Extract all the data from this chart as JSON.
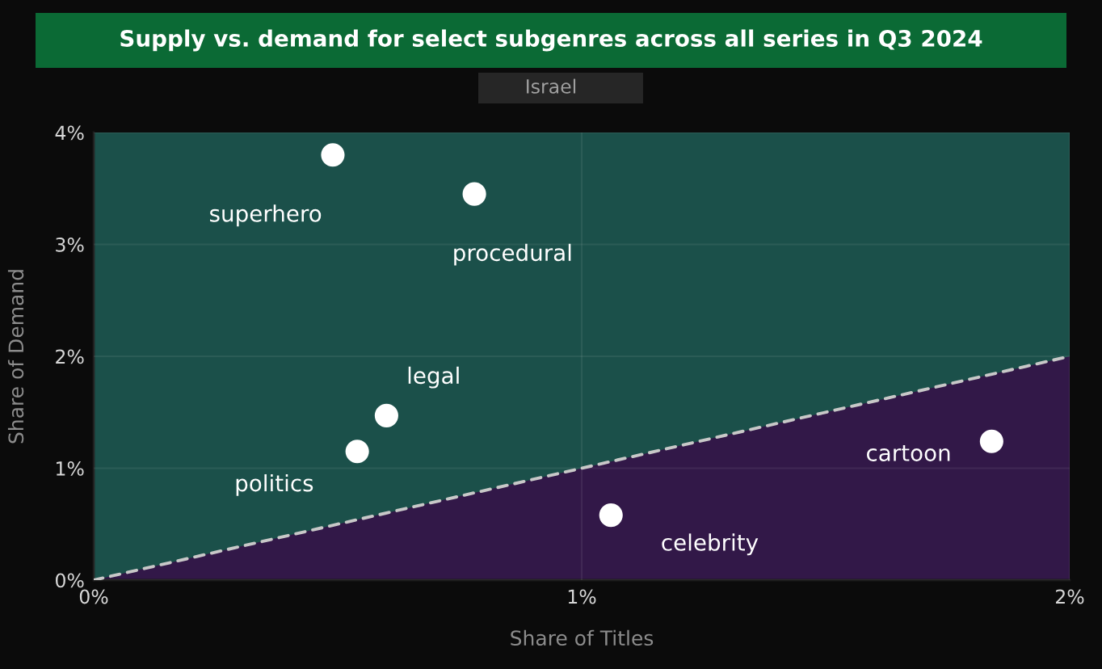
{
  "chart_data": {
    "type": "scatter",
    "title": "Supply vs. demand for select subgenres across all series in Q3 2024",
    "subtitle": "Israel",
    "xlabel": "Share of Titles",
    "ylabel": "Share of Demand",
    "xlim": [
      0,
      2
    ],
    "ylim": [
      0,
      4
    ],
    "xticks": [
      {
        "value": 0,
        "label": "0%"
      },
      {
        "value": 1,
        "label": "1%"
      },
      {
        "value": 2,
        "label": "2%"
      }
    ],
    "yticks": [
      {
        "value": 0,
        "label": "0%"
      },
      {
        "value": 1,
        "label": "1%"
      },
      {
        "value": 2,
        "label": "2%"
      },
      {
        "value": 3,
        "label": "3%"
      },
      {
        "value": 4,
        "label": "4%"
      }
    ],
    "grid": true,
    "series": [
      {
        "type": "line",
        "color": "#c8c8c8",
        "line_style": "dashed",
        "marker": "none",
        "x": [
          0,
          2
        ],
        "values": [
          0,
          2
        ]
      },
      {
        "color": "#ffffff",
        "marker": "circle",
        "x": [
          0.49,
          0.78,
          0.6,
          0.54,
          1.06,
          1.84
        ],
        "values": [
          3.8,
          3.45,
          1.47,
          1.15,
          0.58,
          1.24
        ]
      }
    ],
    "annotations": [
      {
        "text": "superhero",
        "x": 0.49,
        "y": 3.8
      },
      {
        "text": "procedural",
        "x": 0.78,
        "y": 3.45
      },
      {
        "text": "legal",
        "x": 0.6,
        "y": 1.47
      },
      {
        "text": "politics",
        "x": 0.54,
        "y": 1.15
      },
      {
        "text": "celebrity",
        "x": 1.06,
        "y": 0.58
      },
      {
        "text": "cartoon",
        "x": 1.84,
        "y": 1.24
      }
    ]
  }
}
